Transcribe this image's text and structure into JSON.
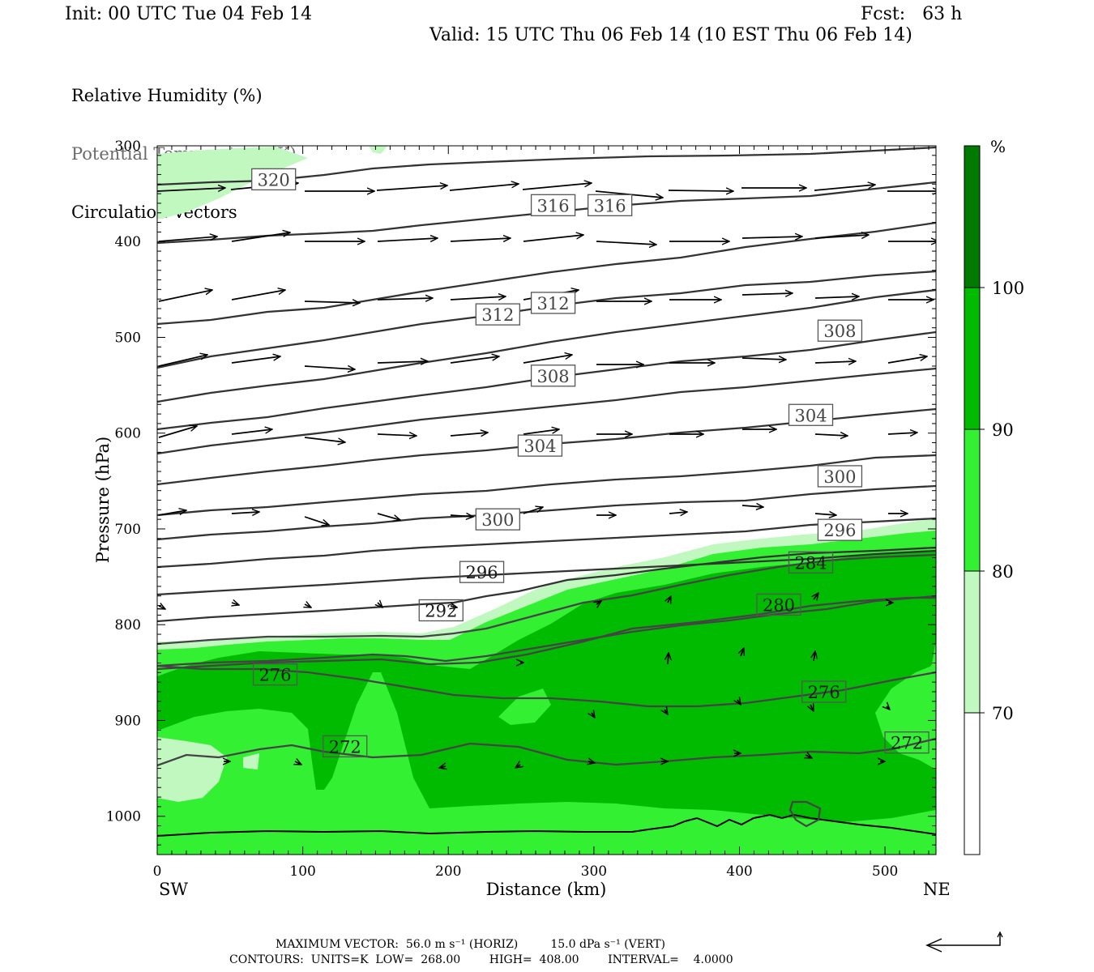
{
  "header": {
    "init": "Init: 00 UTC Tue 04 Feb 14",
    "fcst": "Fcst:   63 h",
    "valid": "Valid: 15 UTC Thu 06 Feb 14 (10 EST Thu 06 Feb 14)",
    "fields": [
      "Relative Humidity (%)",
      "Potential Temperature (K)",
      "Circulation Vectors"
    ]
  },
  "chart_data": {
    "type": "cross-section",
    "xlabel": "Distance (km)",
    "ylabel": "Pressure (hPa)",
    "xlim": [
      0,
      535
    ],
    "ylim": [
      1040,
      300
    ],
    "x_ticks": [
      "0",
      "100",
      "200",
      "300",
      "400",
      "500"
    ],
    "y_ticks": [
      "300",
      "400",
      "500",
      "600",
      "700",
      "800",
      "900",
      "1000"
    ],
    "endpoints": {
      "left": "SW",
      "right": "NE"
    },
    "colorbar": {
      "unit": "%",
      "levels": [
        "70",
        "80",
        "90",
        "100"
      ],
      "colors": [
        "#ffffff",
        "#c0f8c0",
        "#33f033",
        "#00bb00",
        "#007a00"
      ]
    },
    "theta_contours": {
      "units": "K",
      "labels": [
        {
          "text": "320",
          "x": 80,
          "p": 335
        },
        {
          "text": "316",
          "x": 272,
          "p": 362
        },
        {
          "text": "316",
          "x": 311,
          "p": 362
        },
        {
          "text": "312",
          "x": 234,
          "p": 476
        },
        {
          "text": "312",
          "x": 272,
          "p": 464
        },
        {
          "text": "308",
          "x": 272,
          "p": 540
        },
        {
          "text": "308",
          "x": 469,
          "p": 493
        },
        {
          "text": "304",
          "x": 263,
          "p": 613
        },
        {
          "text": "304",
          "x": 449,
          "p": 581
        },
        {
          "text": "300",
          "x": 234,
          "p": 690
        },
        {
          "text": "300",
          "x": 469,
          "p": 645
        },
        {
          "text": "296",
          "x": 223,
          "p": 745
        },
        {
          "text": "296",
          "x": 469,
          "p": 701
        },
        {
          "text": "292",
          "x": 195,
          "p": 785
        },
        {
          "text": "284",
          "x": 449,
          "p": 735
        },
        {
          "text": "280",
          "x": 427,
          "p": 779
        },
        {
          "text": "276",
          "x": 81,
          "p": 852
        },
        {
          "text": "276",
          "x": 458,
          "p": 870
        },
        {
          "text": "272",
          "x": 129,
          "p": 927
        },
        {
          "text": "272",
          "x": 515,
          "p": 923
        }
      ]
    }
  },
  "footer": {
    "line1": "MAXIMUM VECTOR:  56.0 m s⁻¹ (HORIZ)         15.0 dPa s⁻¹ (VERT)",
    "line2": "CONTOURS:  UNITS=K  LOW=  268.00        HIGH=  408.00        INTERVAL=    4.0000"
  }
}
